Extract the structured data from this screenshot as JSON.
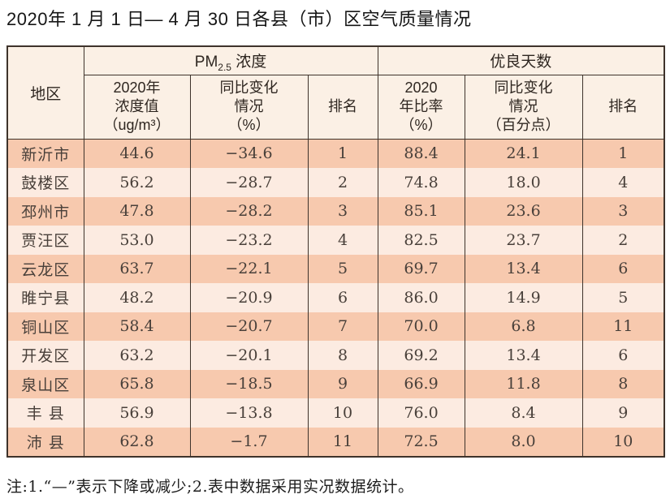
{
  "title": "2020年 1 月 1 日— 4 月 30 日各县（市）区空气质量情况",
  "note": "注:1.“—”表示下降或减少;2.表中数据采用实况数据统计。",
  "colors": {
    "row_odd": "#f7c9ae",
    "row_even": "#fcebe1",
    "header_bg": "#fbf0e5",
    "border": "#3e332b"
  },
  "table": {
    "region_header": "地区",
    "group_pm": {
      "prefix": "PM",
      "subscript": "2.5",
      "suffix": " 浓度"
    },
    "group_good": "优良天数",
    "subheaders": {
      "pm_value": "2020年\n浓度值\n（ug/m³）",
      "pm_change": "同比变化\n情况\n（%）",
      "pm_rank": "排名",
      "good_rate": "2020\n年比率\n（%）",
      "good_change": "同比变化\n情况\n（百分点）",
      "good_rank": "排名"
    },
    "columns_order": [
      "region",
      "pm_value",
      "pm_change",
      "pm_rank",
      "good_rate",
      "good_change",
      "good_rank"
    ],
    "rows": [
      {
        "region": "新沂市",
        "pm_value": "44.6",
        "pm_change": "−34.6",
        "pm_rank": "1",
        "good_rate": "88.4",
        "good_change": "24.1",
        "good_rank": "1"
      },
      {
        "region": "鼓楼区",
        "pm_value": "56.2",
        "pm_change": "−28.7",
        "pm_rank": "2",
        "good_rate": "74.8",
        "good_change": "18.0",
        "good_rank": "4"
      },
      {
        "region": "邳州市",
        "pm_value": "47.8",
        "pm_change": "−28.2",
        "pm_rank": "3",
        "good_rate": "85.1",
        "good_change": "23.6",
        "good_rank": "3"
      },
      {
        "region": "贾汪区",
        "pm_value": "53.0",
        "pm_change": "−23.2",
        "pm_rank": "4",
        "good_rate": "82.5",
        "good_change": "23.7",
        "good_rank": "2"
      },
      {
        "region": "云龙区",
        "pm_value": "63.7",
        "pm_change": "−22.1",
        "pm_rank": "5",
        "good_rate": "69.7",
        "good_change": "13.4",
        "good_rank": "6"
      },
      {
        "region": "睢宁县",
        "pm_value": "48.2",
        "pm_change": "−20.9",
        "pm_rank": "6",
        "good_rate": "86.0",
        "good_change": "14.9",
        "good_rank": "5"
      },
      {
        "region": "铜山区",
        "pm_value": "58.4",
        "pm_change": "−20.7",
        "pm_rank": "7",
        "good_rate": "70.0",
        "good_change": "6.8",
        "good_rank": "11"
      },
      {
        "region": "开发区",
        "pm_value": "63.2",
        "pm_change": "−20.1",
        "pm_rank": "8",
        "good_rate": "69.2",
        "good_change": "13.4",
        "good_rank": "6"
      },
      {
        "region": "泉山区",
        "pm_value": "65.8",
        "pm_change": "−18.5",
        "pm_rank": "9",
        "good_rate": "66.9",
        "good_change": "11.8",
        "good_rank": "8"
      },
      {
        "region": "丰 县",
        "pm_value": "56.9",
        "pm_change": "−13.8",
        "pm_rank": "10",
        "good_rate": "76.0",
        "good_change": "8.4",
        "good_rank": "9"
      },
      {
        "region": "沛 县",
        "pm_value": "62.8",
        "pm_change": "−1.7",
        "pm_rank": "11",
        "good_rate": "72.5",
        "good_change": "8.0",
        "good_rank": "10"
      }
    ]
  }
}
